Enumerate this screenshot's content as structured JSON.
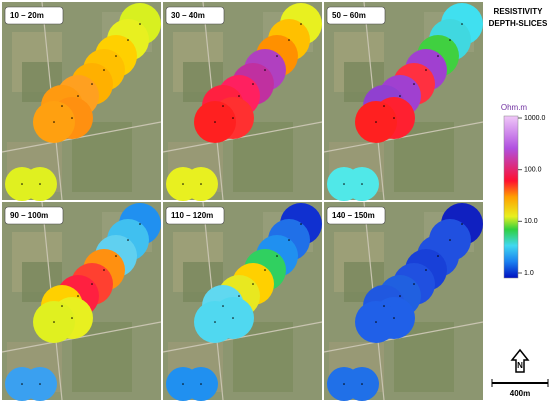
{
  "title": [
    "RESISTIVITY",
    "DEPTH-SLICES"
  ],
  "panels": [
    {
      "label": "10 – 20m"
    },
    {
      "label": "30 – 40m"
    },
    {
      "label": "50 – 60m"
    },
    {
      "label": "90 – 100m"
    },
    {
      "label": "110 – 120m"
    },
    {
      "label": "140 – 150m"
    }
  ],
  "legend": {
    "unit": "Ohm.m",
    "log_scale": true,
    "ticks": [
      {
        "value": 1000,
        "label": "1000.0"
      },
      {
        "value": 100,
        "label": "100.0"
      },
      {
        "value": 10,
        "label": "10.0"
      },
      {
        "value": 1,
        "label": "1.0"
      }
    ]
  },
  "north": "N",
  "scale_bar": "400m"
}
